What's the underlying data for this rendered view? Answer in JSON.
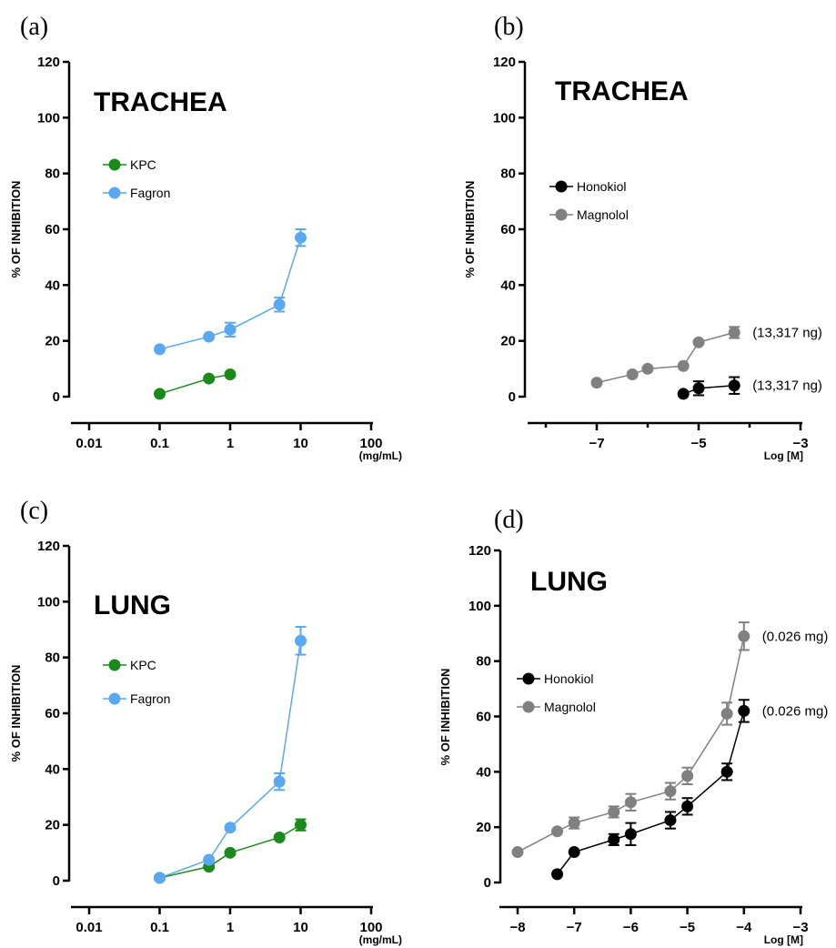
{
  "chart_data": [
    {
      "panel_label": "(a)",
      "title": "TRACHEA",
      "type": "line",
      "xscale": "log",
      "xlabel": "(mg/mL)",
      "ylabel": "% OF INHIBITION",
      "xlim": [
        0.01,
        100
      ],
      "ylim": [
        0,
        120
      ],
      "xticks": [
        0.01,
        0.1,
        1,
        10,
        100
      ],
      "xtick_labels": [
        "0.01",
        "0.1",
        "1",
        "10",
        "100"
      ],
      "yticks": [
        0,
        20,
        40,
        60,
        80,
        100,
        120
      ],
      "ytick_labels": [
        "0",
        "20",
        "40",
        "60",
        "80",
        "100",
        "120"
      ],
      "legend_position": "upper-left",
      "series": [
        {
          "name": "KPC",
          "color": "#1a8a1a",
          "x": [
            0.1,
            0.5,
            1
          ],
          "y": [
            1,
            6.5,
            8
          ],
          "err": [
            0,
            0,
            0
          ]
        },
        {
          "name": "Fagron",
          "color": "#5aa8f0",
          "x": [
            0.1,
            0.5,
            1,
            5,
            10
          ],
          "y": [
            17,
            21.5,
            24,
            33,
            57
          ],
          "err": [
            0,
            0,
            2.5,
            2.5,
            3
          ]
        }
      ],
      "annotations": []
    },
    {
      "panel_label": "(b)",
      "title": "TRACHEA",
      "type": "line",
      "xscale": "linear",
      "xlabel": "Log [M]",
      "ylabel": "% OF INHIBITION",
      "xlim": [
        -8,
        -3
      ],
      "ylim": [
        0,
        120
      ],
      "xticks": [
        -7,
        -5,
        -3
      ],
      "xtick_labels": [
        "−7",
        "−5",
        "−3"
      ],
      "yticks": [
        0,
        20,
        40,
        60,
        80,
        100,
        120
      ],
      "ytick_labels": [
        "0",
        "20",
        "40",
        "60",
        "80",
        "100",
        "120"
      ],
      "legend_position": "upper-left",
      "series": [
        {
          "name": "Honokiol",
          "color": "#000000",
          "x": [
            -5.3,
            -5,
            -4.3
          ],
          "y": [
            1,
            3,
            4
          ],
          "err": [
            0,
            2.5,
            3
          ]
        },
        {
          "name": "Magnolol",
          "color": "#808080",
          "x": [
            -7,
            -6.3,
            -6,
            -5.3,
            -5,
            -4.3
          ],
          "y": [
            5,
            8,
            10,
            11,
            19.5,
            23
          ],
          "err": [
            0,
            0,
            0,
            0,
            0,
            2
          ]
        }
      ],
      "annotations": [
        {
          "text": "(13,317 ng)",
          "series": "Magnolol"
        },
        {
          "text": "(13,317 ng)",
          "series": "Honokiol"
        }
      ]
    },
    {
      "panel_label": "(c)",
      "title": "LUNG",
      "type": "line",
      "xscale": "log",
      "xlabel": "(mg/mL)",
      "ylabel": "% OF INHIBITION",
      "xlim": [
        0.01,
        100
      ],
      "ylim": [
        0,
        120
      ],
      "xticks": [
        0.01,
        0.1,
        1,
        10,
        100
      ],
      "xtick_labels": [
        "0.01",
        "0.1",
        "1",
        "10",
        "100"
      ],
      "yticks": [
        0,
        20,
        40,
        60,
        80,
        100,
        120
      ],
      "ytick_labels": [
        "0",
        "20",
        "40",
        "60",
        "80",
        "100",
        "120"
      ],
      "legend_position": "upper-left",
      "series": [
        {
          "name": "KPC",
          "color": "#1a8a1a",
          "x": [
            0.1,
            0.5,
            1,
            5,
            10
          ],
          "y": [
            1,
            5,
            10,
            15.5,
            20
          ],
          "err": [
            0,
            0,
            0,
            0,
            2
          ]
        },
        {
          "name": "Fagron",
          "color": "#5aa8f0",
          "x": [
            0.1,
            0.5,
            1,
            5,
            10
          ],
          "y": [
            1,
            7.5,
            19,
            35.5,
            86
          ],
          "err": [
            0,
            0,
            0,
            3,
            5
          ]
        }
      ],
      "annotations": []
    },
    {
      "panel_label": "(d)",
      "title": "LUNG",
      "type": "line",
      "xscale": "linear",
      "xlabel": "Log [M]",
      "ylabel": "% OF INHIBITION",
      "xlim": [
        -8,
        -3
      ],
      "ylim": [
        0,
        120
      ],
      "xticks": [
        -8,
        -7,
        -6,
        -5,
        -4,
        -3
      ],
      "xtick_labels": [
        "−8",
        "−7",
        "−6",
        "−5",
        "−4",
        "−3"
      ],
      "yticks": [
        0,
        20,
        40,
        60,
        80,
        100,
        120
      ],
      "ytick_labels": [
        "0",
        "20",
        "40",
        "60",
        "80",
        "100",
        "120"
      ],
      "legend_position": "upper-left",
      "series": [
        {
          "name": "Honokiol",
          "color": "#000000",
          "x": [
            -7.3,
            -7,
            -6.3,
            -6,
            -5.3,
            -5,
            -4.3,
            -4
          ],
          "y": [
            3,
            11,
            15.5,
            17.5,
            22.5,
            27.5,
            40,
            62
          ],
          "err": [
            0,
            0,
            2,
            4,
            3,
            3,
            3,
            4
          ]
        },
        {
          "name": "Magnolol",
          "color": "#808080",
          "x": [
            -8,
            -7.3,
            -7,
            -6.3,
            -6,
            -5.3,
            -5,
            -4.3,
            -4
          ],
          "y": [
            11,
            18.5,
            21.5,
            25.5,
            29,
            33,
            38.5,
            61,
            89
          ],
          "err": [
            0,
            0,
            2,
            2,
            3,
            3,
            3,
            4,
            5
          ]
        }
      ],
      "annotations": [
        {
          "text": "(0.026 mg)",
          "series": "Magnolol"
        },
        {
          "text": "(0.026 mg)",
          "series": "Honokiol"
        }
      ]
    }
  ]
}
